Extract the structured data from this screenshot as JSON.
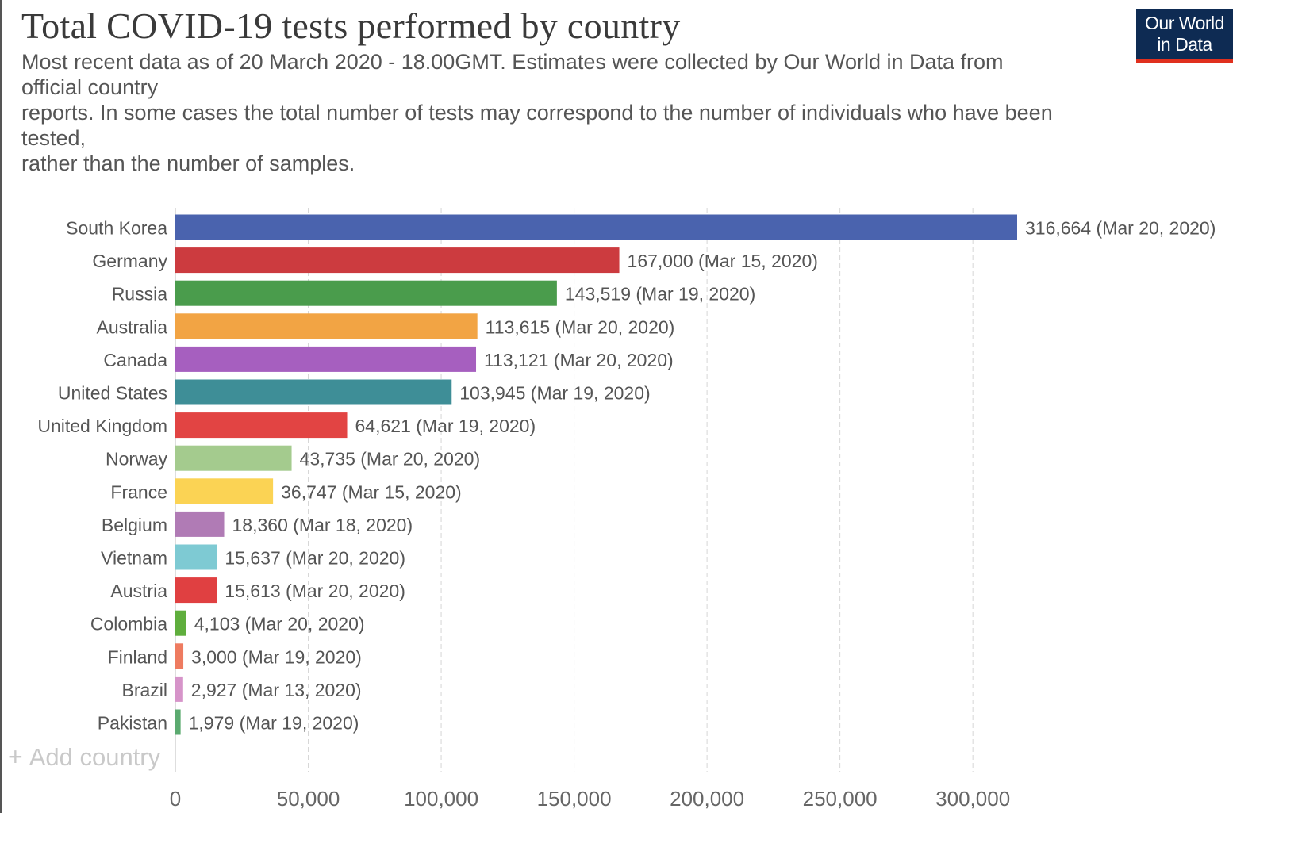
{
  "title": "Total COVID-19 tests performed by country",
  "subtitle": "Most recent data as of 20 March 2020 - 18.00GMT. Estimates were collected by Our World in Data from\nofficial country\nreports. In some cases the total number of tests may correspond to the number of individuals who have been\ntested,\nrather than the number of samples.",
  "logo": {
    "line1": "Our World",
    "line2": "in Data",
    "bg": "#0e2b53",
    "accent": "#e0301e"
  },
  "add_country": {
    "icon": "plus-icon",
    "label": "Add country"
  },
  "chart_data": {
    "type": "bar",
    "orientation": "horizontal",
    "title": "Total COVID-19 tests performed by country",
    "xlabel": "",
    "ylabel": "",
    "xlim": [
      0,
      316664
    ],
    "xticks": [
      0,
      50000,
      100000,
      150000,
      200000,
      250000,
      300000
    ],
    "xtick_labels": [
      "0",
      "50,000",
      "100,000",
      "150,000",
      "200,000",
      "250,000",
      "300,000"
    ],
    "grid": "vertical dashed",
    "categories": [
      "South Korea",
      "Germany",
      "Russia",
      "Australia",
      "Canada",
      "United States",
      "United Kingdom",
      "Norway",
      "France",
      "Belgium",
      "Vietnam",
      "Austria",
      "Colombia",
      "Finland",
      "Brazil",
      "Pakistan"
    ],
    "values": [
      316664,
      167000,
      143519,
      113615,
      113121,
      103945,
      64621,
      43735,
      36747,
      18360,
      15637,
      15613,
      4103,
      3000,
      2927,
      1979
    ],
    "data_labels": [
      "316,664 (Mar 20, 2020)",
      "167,000 (Mar 15, 2020)",
      "143,519 (Mar 19, 2020)",
      "113,615 (Mar 20, 2020)",
      "113,121 (Mar 20, 2020)",
      "103,945 (Mar 19, 2020)",
      "64,621 (Mar 19, 2020)",
      "43,735 (Mar 20, 2020)",
      "36,747 (Mar 15, 2020)",
      "18,360 (Mar 18, 2020)",
      "15,637 (Mar 20, 2020)",
      "15,613 (Mar 20, 2020)",
      "4,103 (Mar 20, 2020)",
      "3,000 (Mar 19, 2020)",
      "2,927 (Mar 13, 2020)",
      "1,979 (Mar 19, 2020)"
    ],
    "colors": [
      "#4a63ae",
      "#cc3b3f",
      "#4a9c4c",
      "#f2a444",
      "#a65fbf",
      "#3e8e97",
      "#e24443",
      "#a4cb8e",
      "#fbd354",
      "#b07bb5",
      "#7ecad3",
      "#e04041",
      "#5fae3d",
      "#ee7b60",
      "#d694c9",
      "#5baa70"
    ]
  }
}
